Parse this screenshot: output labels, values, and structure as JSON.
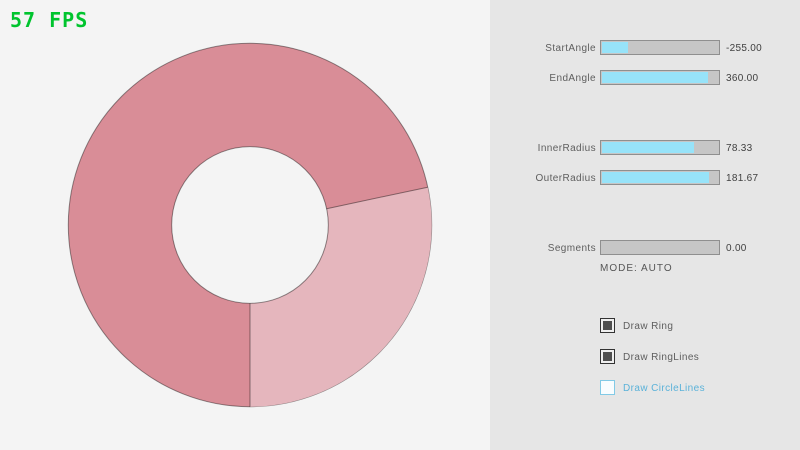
{
  "fps": "57 FPS",
  "colors": {
    "background": "#f4f4f4",
    "panel_background": "#e6e6e6",
    "ring_dark": "#d98d97",
    "ring_light": "#e5b6bd",
    "ring_outline": "rgba(0,0,0,0.42)",
    "slider_fill_cyan": "#97e3f9",
    "fps_green": "#00c42e",
    "accent_blue": "#5bb2d9"
  },
  "ring": {
    "start_angle": -255.0,
    "end_angle": 360.0,
    "inner_radius": 78.33,
    "outer_radius": 181.67,
    "segments": 0.0,
    "mode": "AUTO"
  },
  "panel": {
    "sliders": [
      {
        "label": "StartAngle",
        "value": "-255.00",
        "fill": 0.217
      },
      {
        "label": "EndAngle",
        "value": "360.00",
        "fill": 0.9
      },
      {
        "label": "InnerRadius",
        "value": "78.33",
        "fill": 0.783
      },
      {
        "label": "OuterRadius",
        "value": "181.67",
        "fill": 0.908
      },
      {
        "label": "Segments",
        "value": "0.00",
        "fill": 0.0
      }
    ],
    "mode_text": "MODE: AUTO",
    "checkboxes": [
      {
        "label": "Draw Ring",
        "checked": true
      },
      {
        "label": "Draw RingLines",
        "checked": true
      },
      {
        "label": "Draw CircleLines",
        "checked": false
      }
    ]
  }
}
